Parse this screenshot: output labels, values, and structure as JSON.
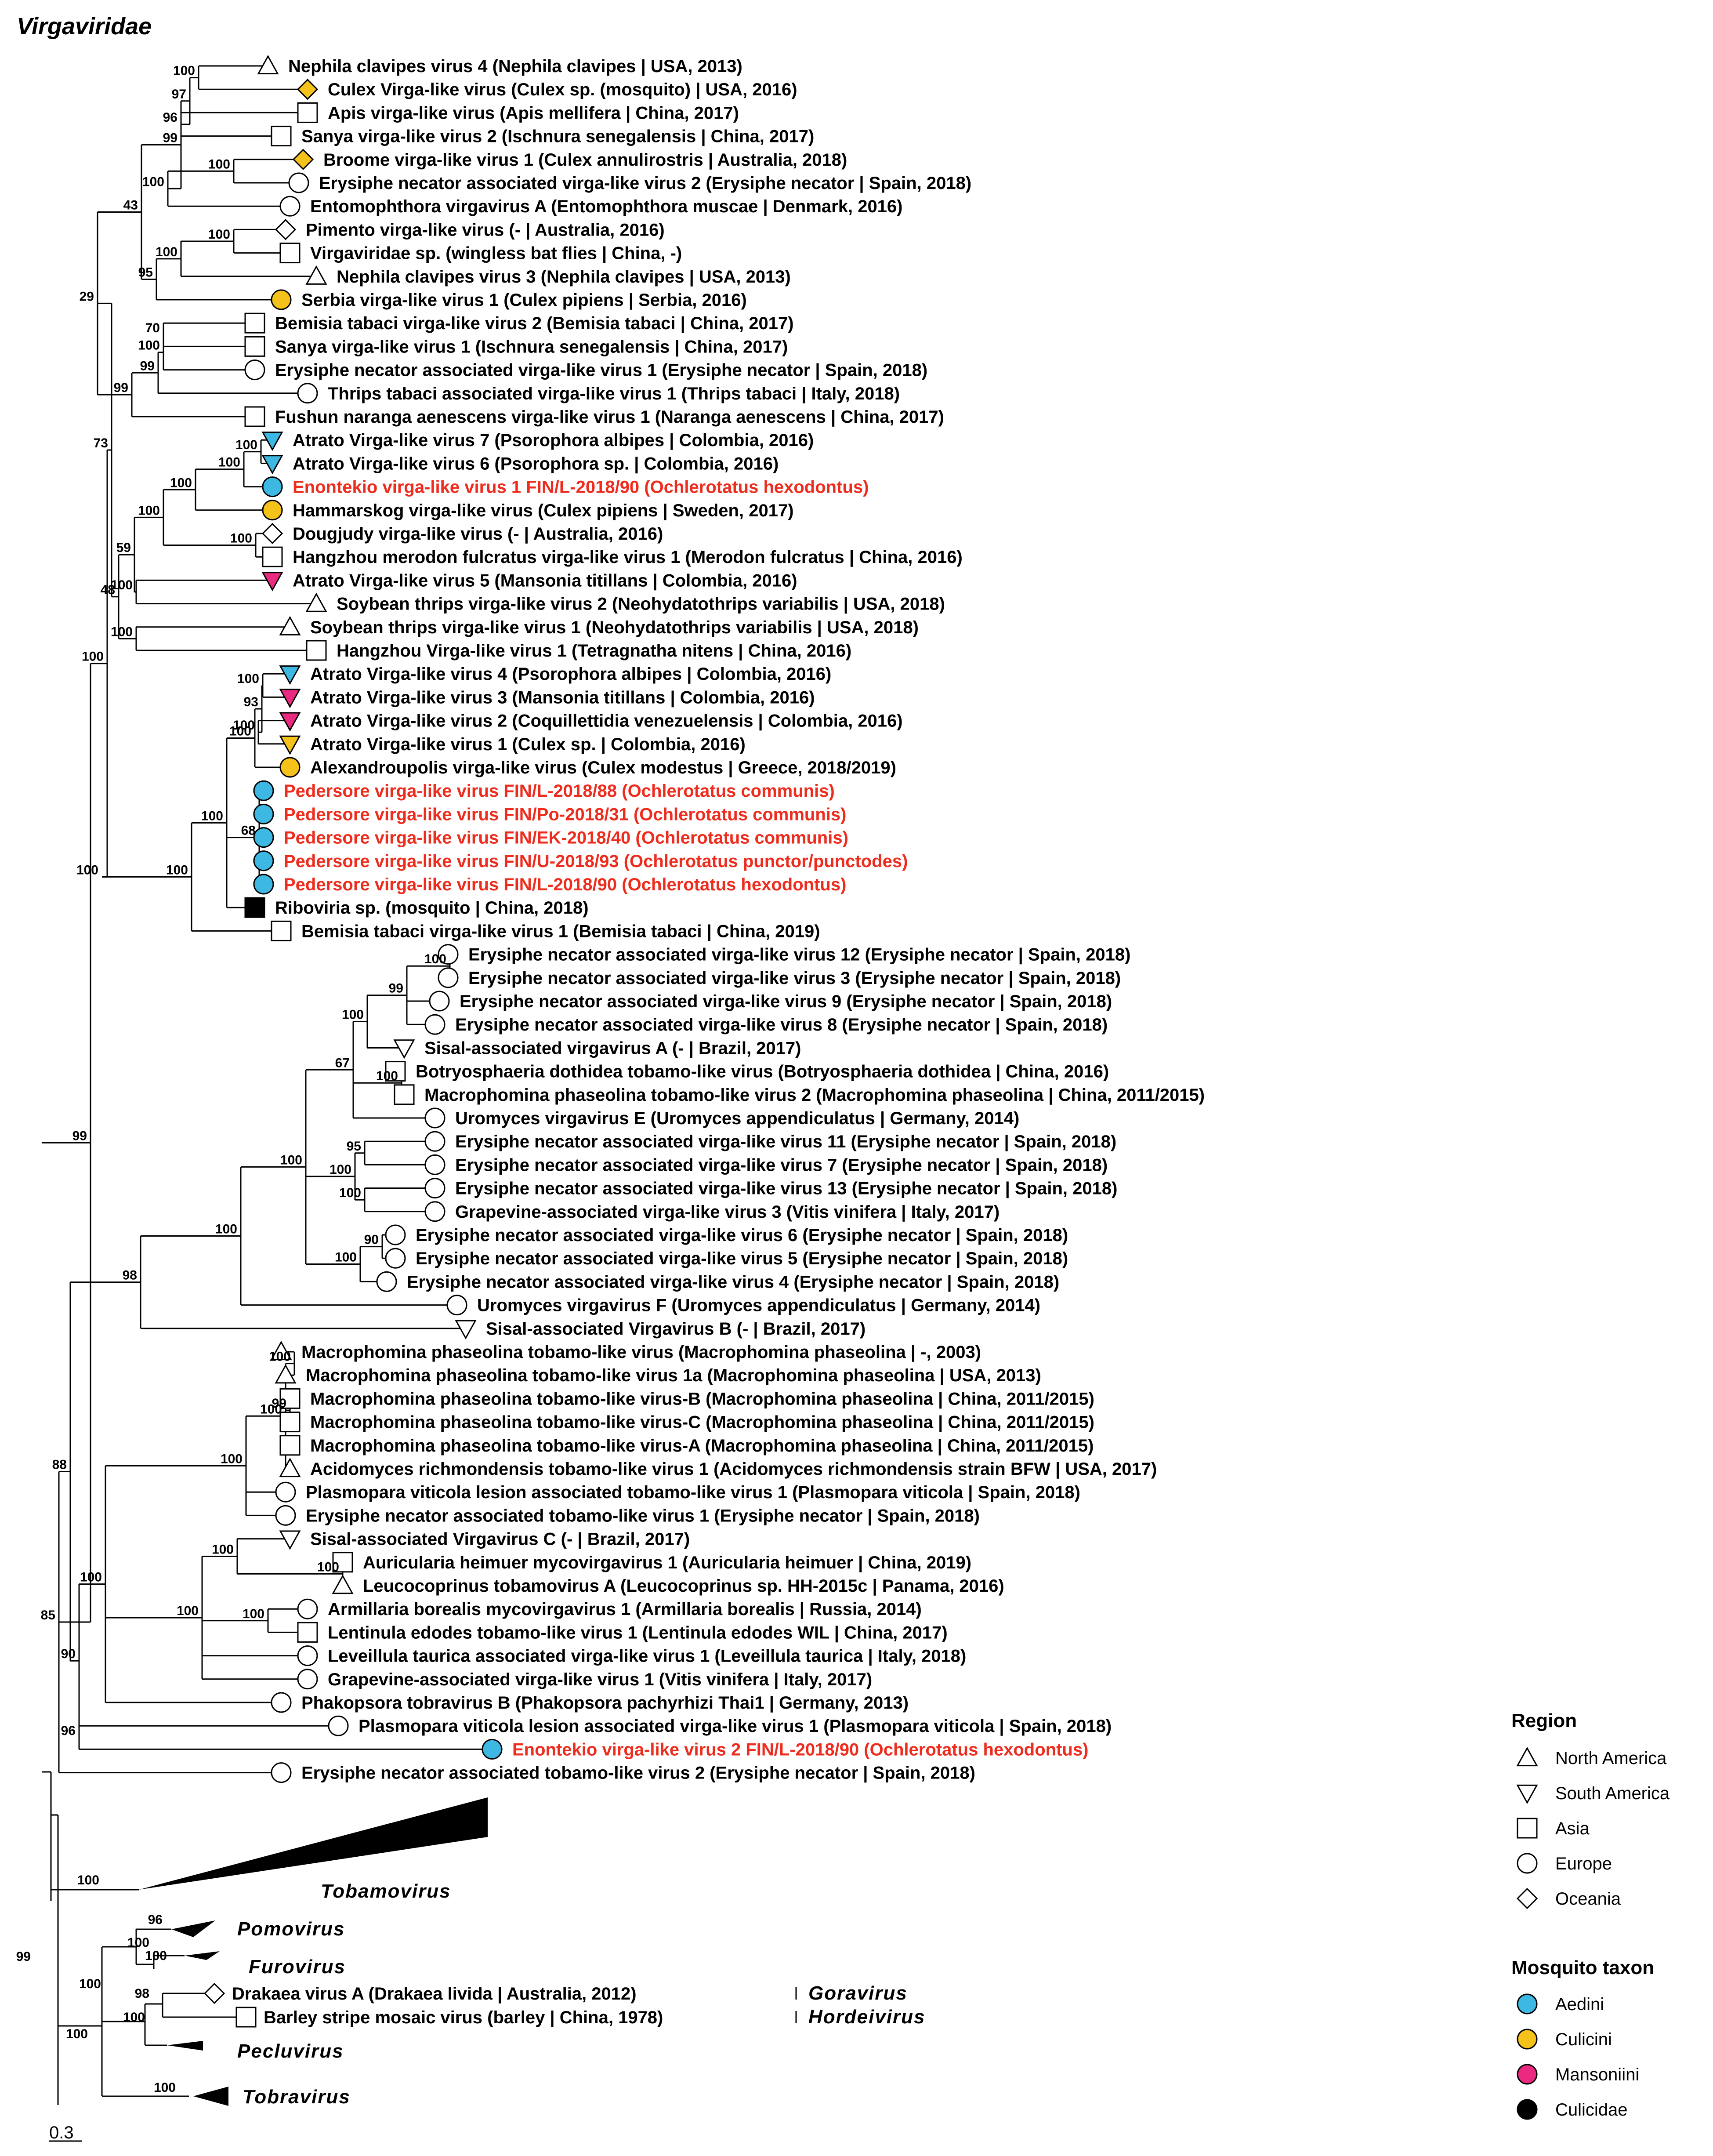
{
  "figure_title": "Virgaviridae",
  "scale_label": "0.3",
  "colors": {
    "Aedini": "#3db8e2",
    "Culicini": "#f4c21b",
    "Mansoniini": "#ea2a80",
    "Culicidae": "#000000",
    "highlight": "#ee2c1e"
  },
  "legend": {
    "region_title": "Region",
    "regions": [
      {
        "shape": "triangle-up",
        "label": "North America"
      },
      {
        "shape": "triangle-down",
        "label": "South America"
      },
      {
        "shape": "square",
        "label": "Asia"
      },
      {
        "shape": "circle",
        "label": "Europe"
      },
      {
        "shape": "diamond",
        "label": "Oceania"
      }
    ],
    "taxon_title": "Mosquito taxon",
    "taxa": [
      {
        "label": "Aedini",
        "color": "#3db8e2"
      },
      {
        "label": "Culicini",
        "color": "#f4c21b"
      },
      {
        "label": "Mansoniini",
        "color": "#ea2a80"
      },
      {
        "label": "Culicidae",
        "color": "#000000"
      }
    ]
  },
  "tips": [
    {
      "label": "Nephila clavipes virus 4 (Nephila clavipes | USA, 2013)",
      "shape": "triangle-up",
      "fill": "none"
    },
    {
      "label": "Culex Virga-like virus (Culex sp. (mosquito) | USA, 2016)",
      "shape": "diamond",
      "fill": "Culicini"
    },
    {
      "label": "Apis virga-like virus (Apis mellifera | China, 2017)",
      "shape": "square",
      "fill": "none"
    },
    {
      "label": "Sanya virga-like virus 2 (Ischnura senegalensis | China, 2017)",
      "shape": "square",
      "fill": "none"
    },
    {
      "label": "Broome virga-like virus 1 (Culex annulirostris | Australia, 2018)",
      "shape": "diamond",
      "fill": "Culicini"
    },
    {
      "label": "Erysiphe necator associated virga-like virus 2 (Erysiphe necator | Spain, 2018)",
      "shape": "circle",
      "fill": "none"
    },
    {
      "label": "Entomophthora virgavirus A (Entomophthora muscae | Denmark, 2016)",
      "shape": "circle",
      "fill": "none"
    },
    {
      "label": "Pimento virga-like virus (- | Australia, 2016)",
      "shape": "diamond",
      "fill": "none"
    },
    {
      "label": "Virgaviridae sp. (wingless bat flies | China, -)",
      "shape": "square",
      "fill": "none"
    },
    {
      "label": "Nephila clavipes virus 3 (Nephila clavipes | USA, 2013)",
      "shape": "triangle-up",
      "fill": "none"
    },
    {
      "label": "Serbia virga-like virus 1 (Culex pipiens | Serbia, 2016)",
      "shape": "circle",
      "fill": "Culicini"
    },
    {
      "label": "Bemisia tabaci virga-like virus 2 (Bemisia tabaci | China, 2017)",
      "shape": "square",
      "fill": "none"
    },
    {
      "label": "Sanya virga-like virus 1 (Ischnura senegalensis | China, 2017)",
      "shape": "square",
      "fill": "none"
    },
    {
      "label": "Erysiphe necator associated virga-like virus 1 (Erysiphe necator | Spain, 2018)",
      "shape": "circle",
      "fill": "none"
    },
    {
      "label": "Thrips tabaci associated virga-like virus 1 (Thrips tabaci | Italy, 2018)",
      "shape": "circle",
      "fill": "none"
    },
    {
      "label": "Fushun naranga aenescens virga-like virus 1 (Naranga aenescens | China, 2017)",
      "shape": "square",
      "fill": "none"
    },
    {
      "label": "Atrato Virga-like virus 7 (Psorophora albipes | Colombia, 2016)",
      "shape": "triangle-down",
      "fill": "Aedini"
    },
    {
      "label": "Atrato Virga-like virus 6 (Psorophora sp. | Colombia, 2016)",
      "shape": "triangle-down",
      "fill": "Aedini"
    },
    {
      "label": "Enontekio virga-like virus 1 FIN/L-2018/90 (Ochlerotatus hexodontus)",
      "shape": "circle",
      "fill": "Aedini",
      "highlight": true
    },
    {
      "label": "Hammarskog virga-like virus (Culex pipiens | Sweden, 2017)",
      "shape": "circle",
      "fill": "Culicini"
    },
    {
      "label": "Dougjudy virga-like virus (- | Australia, 2016)",
      "shape": "diamond",
      "fill": "none"
    },
    {
      "label": "Hangzhou merodon fulcratus virga-like virus 1 (Merodon fulcratus | China, 2016)",
      "shape": "square",
      "fill": "none"
    },
    {
      "label": "Atrato Virga-like virus 5 (Mansonia titillans | Colombia, 2016)",
      "shape": "triangle-down",
      "fill": "Mansoniini"
    },
    {
      "label": "Soybean thrips virga-like virus 2 (Neohydatothrips variabilis | USA, 2018)",
      "shape": "triangle-up",
      "fill": "none"
    },
    {
      "label": "Soybean thrips virga-like virus 1 (Neohydatothrips variabilis | USA, 2018)",
      "shape": "triangle-up",
      "fill": "none"
    },
    {
      "label": "Hangzhou Virga-like virus 1 (Tetragnatha nitens | China, 2016)",
      "shape": "square",
      "fill": "none"
    },
    {
      "label": "Atrato Virga-like virus 4 (Psorophora albipes | Colombia, 2016)",
      "shape": "triangle-down",
      "fill": "Aedini"
    },
    {
      "label": "Atrato Virga-like virus 3 (Mansonia titillans | Colombia, 2016)",
      "shape": "triangle-down",
      "fill": "Mansoniini"
    },
    {
      "label": "Atrato Virga-like virus 2 (Coquillettidia venezuelensis | Colombia, 2016)",
      "shape": "triangle-down",
      "fill": "Mansoniini"
    },
    {
      "label": "Atrato Virga-like virus 1 (Culex sp. | Colombia, 2016)",
      "shape": "triangle-down",
      "fill": "Culicini"
    },
    {
      "label": "Alexandroupolis virga-like virus (Culex modestus | Greece, 2018/2019)",
      "shape": "circle",
      "fill": "Culicini"
    },
    {
      "label": "Pedersore virga-like virus FIN/L-2018/88 (Ochlerotatus communis)",
      "shape": "circle",
      "fill": "Aedini",
      "highlight": true
    },
    {
      "label": "Pedersore virga-like virus FIN/Po-2018/31 (Ochlerotatus communis)",
      "shape": "circle",
      "fill": "Aedini",
      "highlight": true
    },
    {
      "label": "Pedersore virga-like virus FIN/EK-2018/40 (Ochlerotatus communis)",
      "shape": "circle",
      "fill": "Aedini",
      "highlight": true
    },
    {
      "label": "Pedersore virga-like virus FIN/U-2018/93 (Ochlerotatus punctor/punctodes)",
      "shape": "circle",
      "fill": "Aedini",
      "highlight": true
    },
    {
      "label": "Pedersore virga-like virus FIN/L-2018/90 (Ochlerotatus hexodontus)",
      "shape": "circle",
      "fill": "Aedini",
      "highlight": true
    },
    {
      "label": "Riboviria sp. (mosquito | China, 2018)",
      "shape": "square",
      "fill": "Culicidae"
    },
    {
      "label": "Bemisia tabaci virga-like virus 1 (Bemisia tabaci | China, 2019)",
      "shape": "square",
      "fill": "none"
    },
    {
      "label": "Erysiphe necator associated virga-like virus 12 (Erysiphe necator | Spain, 2018)",
      "shape": "circle",
      "fill": "none"
    },
    {
      "label": "Erysiphe necator associated virga-like virus 3 (Erysiphe necator | Spain, 2018)",
      "shape": "circle",
      "fill": "none"
    },
    {
      "label": "Erysiphe necator associated virga-like virus 9 (Erysiphe necator | Spain, 2018)",
      "shape": "circle",
      "fill": "none"
    },
    {
      "label": "Erysiphe necator associated virga-like virus 8 (Erysiphe necator | Spain, 2018)",
      "shape": "circle",
      "fill": "none"
    },
    {
      "label": "Sisal-associated virgavirus A (- | Brazil, 2017)",
      "shape": "triangle-down",
      "fill": "none"
    },
    {
      "label": "Botryosphaeria dothidea tobamo-like virus (Botryosphaeria dothidea | China, 2016)",
      "shape": "square",
      "fill": "none"
    },
    {
      "label": "Macrophomina phaseolina tobamo-like virus 2 (Macrophomina phaseolina | China, 2011/2015)",
      "shape": "square",
      "fill": "none"
    },
    {
      "label": "Uromyces virgavirus E (Uromyces appendiculatus | Germany, 2014)",
      "shape": "circle",
      "fill": "none"
    },
    {
      "label": "Erysiphe necator associated virga-like virus 11 (Erysiphe necator | Spain, 2018)",
      "shape": "circle",
      "fill": "none"
    },
    {
      "label": "Erysiphe necator associated virga-like virus 7 (Erysiphe necator | Spain, 2018)",
      "shape": "circle",
      "fill": "none"
    },
    {
      "label": "Erysiphe necator associated virga-like virus 13 (Erysiphe necator | Spain, 2018)",
      "shape": "circle",
      "fill": "none"
    },
    {
      "label": "Grapevine-associated virga-like virus 3 (Vitis vinifera | Italy, 2017)",
      "shape": "circle",
      "fill": "none"
    },
    {
      "label": "Erysiphe necator associated virga-like virus 6 (Erysiphe necator | Spain, 2018)",
      "shape": "circle",
      "fill": "none"
    },
    {
      "label": "Erysiphe necator associated virga-like virus 5 (Erysiphe necator | Spain, 2018)",
      "shape": "circle",
      "fill": "none"
    },
    {
      "label": "Erysiphe necator associated virga-like virus 4 (Erysiphe necator | Spain, 2018)",
      "shape": "circle",
      "fill": "none"
    },
    {
      "label": "Uromyces virgavirus F (Uromyces appendiculatus | Germany, 2014)",
      "shape": "circle",
      "fill": "none"
    },
    {
      "label": "Sisal-associated Virgavirus B (- | Brazil, 2017)",
      "shape": "triangle-down",
      "fill": "none"
    },
    {
      "label": "Macrophomina phaseolina tobamo-like virus (Macrophomina phaseolina | -, 2003)",
      "shape": "triangle-up",
      "fill": "none"
    },
    {
      "label": "Macrophomina phaseolina tobamo-like virus 1a (Macrophomina phaseolina | USA, 2013)",
      "shape": "triangle-up",
      "fill": "none"
    },
    {
      "label": "Macrophomina phaseolina tobamo-like virus-B (Macrophomina phaseolina | China, 2011/2015)",
      "shape": "square",
      "fill": "none"
    },
    {
      "label": "Macrophomina phaseolina tobamo-like virus-C (Macrophomina phaseolina | China, 2011/2015)",
      "shape": "square",
      "fill": "none"
    },
    {
      "label": "Macrophomina phaseolina tobamo-like virus-A (Macrophomina phaseolina | China, 2011/2015)",
      "shape": "square",
      "fill": "none"
    },
    {
      "label": "Acidomyces richmondensis tobamo-like virus 1 (Acidomyces richmondensis strain BFW | USA, 2017)",
      "shape": "triangle-up",
      "fill": "none"
    },
    {
      "label": "Plasmopara viticola lesion associated tobamo-like virus 1 (Plasmopara viticola | Spain, 2018)",
      "shape": "circle",
      "fill": "none"
    },
    {
      "label": "Erysiphe necator associated tobamo-like virus 1 (Erysiphe necator | Spain, 2018)",
      "shape": "circle",
      "fill": "none"
    },
    {
      "label": "Sisal-associated Virgavirus C (- | Brazil, 2017)",
      "shape": "triangle-down",
      "fill": "none"
    },
    {
      "label": "Auricularia heimuer mycovirgavirus 1 (Auricularia heimuer | China, 2019)",
      "shape": "square",
      "fill": "none"
    },
    {
      "label": "Leucocoprinus tobamovirus A (Leucocoprinus sp. HH-2015c | Panama, 2016)",
      "shape": "triangle-up",
      "fill": "none"
    },
    {
      "label": "Armillaria borealis mycovirgavirus 1 (Armillaria borealis | Russia, 2014)",
      "shape": "circle",
      "fill": "none"
    },
    {
      "label": "Lentinula edodes tobamo-like virus 1 (Lentinula edodes WIL | China, 2017)",
      "shape": "square",
      "fill": "none"
    },
    {
      "label": "Leveillula taurica associated virga-like virus 1 (Leveillula taurica | Italy, 2018)",
      "shape": "circle",
      "fill": "none"
    },
    {
      "label": "Grapevine-associated virga-like virus 1 (Vitis vinifera | Italy, 2017)",
      "shape": "circle",
      "fill": "none"
    },
    {
      "label": "Phakopsora tobravirus B (Phakopsora pachyrhizi Thai1 | Germany, 2013)",
      "shape": "circle",
      "fill": "none"
    },
    {
      "label": "Plasmopara viticola lesion associated virga-like virus 1 (Plasmopara viticola | Spain, 2018)",
      "shape": "circle",
      "fill": "none"
    },
    {
      "label": "Enontekio virga-like virus 2 FIN/L-2018/90 (Ochlerotatus hexodontus)",
      "shape": "circle",
      "fill": "Aedini",
      "highlight": true
    },
    {
      "label": "Erysiphe necator associated tobamo-like virus 2 (Erysiphe necator | Spain, 2018)",
      "shape": "circle",
      "fill": "none"
    }
  ],
  "collapsed_clades": [
    {
      "name": "Tobamovirus"
    },
    {
      "name": "Pomovirus"
    },
    {
      "name": "Furovirus"
    },
    {
      "name": "Pecluvirus"
    },
    {
      "name": "Tobravirus"
    }
  ],
  "outgroup_tips": [
    {
      "label": "Drakaea virus A (Drakaea livida | Australia, 2012)",
      "shape": "diamond",
      "fill": "none",
      "genus": "Goravirus"
    },
    {
      "label": "Barley stripe mosaic virus (barley | China, 1978)",
      "shape": "square",
      "fill": "none",
      "genus": "Hordeivirus"
    }
  ],
  "bootstrap_values": [
    "100",
    "97",
    "96",
    "99",
    "100",
    "100",
    "43",
    "100",
    "100",
    "95",
    "29",
    "70",
    "100",
    "99",
    "99",
    "73",
    "100",
    "100",
    "100",
    "100",
    "100",
    "59",
    "100",
    "48",
    "100",
    "93",
    "100",
    "100",
    "68",
    "80",
    "98",
    "100",
    "90",
    "100",
    "100",
    "100",
    "99",
    "100",
    "100",
    "100",
    "67",
    "100",
    "95",
    "100",
    "100",
    "90",
    "100",
    "98",
    "100",
    "99",
    "99",
    "100",
    "100",
    "100",
    "100",
    "100",
    "100",
    "100",
    "100",
    "100",
    "100",
    "100",
    "96",
    "90",
    "88",
    "85",
    "99",
    "100",
    "96",
    "100",
    "100",
    "98",
    "100",
    "100",
    "100",
    "100",
    "99"
  ]
}
